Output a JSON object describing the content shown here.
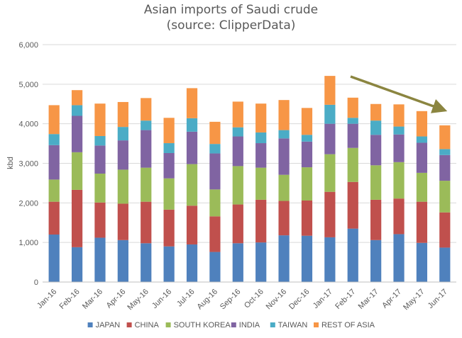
{
  "chart_data": {
    "type": "bar",
    "stacked": true,
    "title_lines": [
      "Asian imports of Saudi crude",
      "(source: ClipperData)"
    ],
    "xlabel": "",
    "ylabel": "kbd",
    "ylim": [
      0,
      6000
    ],
    "yticks": [
      "0",
      "1,000",
      "2,000",
      "3,000",
      "4,000",
      "5,000",
      "6,000"
    ],
    "grid": true,
    "legend_position": "bottom",
    "categories": [
      "Jan-16",
      "Feb-16",
      "Mar-16",
      "Apr-16",
      "May-16",
      "Jun-16",
      "Jul-16",
      "Aug-16",
      "Sep-16",
      "Oct-16",
      "Nov-16",
      "Dec-16",
      "Jan-17",
      "Feb-17",
      "Mar-17",
      "Apr-17",
      "May-17",
      "Jun-17"
    ],
    "series": [
      {
        "name": "JAPAN",
        "color": "#4f81bd",
        "values": [
          1200,
          880,
          1120,
          1060,
          980,
          900,
          950,
          760,
          980,
          1000,
          1180,
          1170,
          1130,
          1350,
          1060,
          1210,
          990,
          870
        ]
      },
      {
        "name": "CHINA",
        "color": "#c0504d",
        "values": [
          830,
          1450,
          890,
          920,
          1050,
          930,
          980,
          900,
          980,
          1080,
          870,
          890,
          1150,
          1180,
          1020,
          900,
          1040,
          890
        ]
      },
      {
        "name": "SOUTH KOREA",
        "color": "#9bbb59",
        "values": [
          560,
          950,
          730,
          860,
          860,
          790,
          1050,
          680,
          970,
          810,
          660,
          840,
          950,
          860,
          870,
          920,
          730,
          800
        ]
      },
      {
        "name": "INDIA",
        "color": "#8064a2",
        "values": [
          870,
          920,
          710,
          740,
          950,
          640,
          820,
          910,
          750,
          620,
          920,
          650,
          770,
          610,
          770,
          700,
          760,
          650
        ]
      },
      {
        "name": "TAIWAN",
        "color": "#4bacc6",
        "values": [
          280,
          270,
          240,
          340,
          240,
          250,
          340,
          240,
          230,
          270,
          210,
          170,
          480,
          150,
          360,
          200,
          160,
          150
        ]
      },
      {
        "name": "REST OF ASIA",
        "color": "#f79646",
        "values": [
          730,
          380,
          820,
          630,
          570,
          640,
          760,
          560,
          650,
          730,
          760,
          680,
          730,
          510,
          420,
          560,
          640,
          600
        ]
      }
    ],
    "annotation": {
      "type": "arrow",
      "direction": "down-right",
      "color": "#8b8540"
    }
  }
}
